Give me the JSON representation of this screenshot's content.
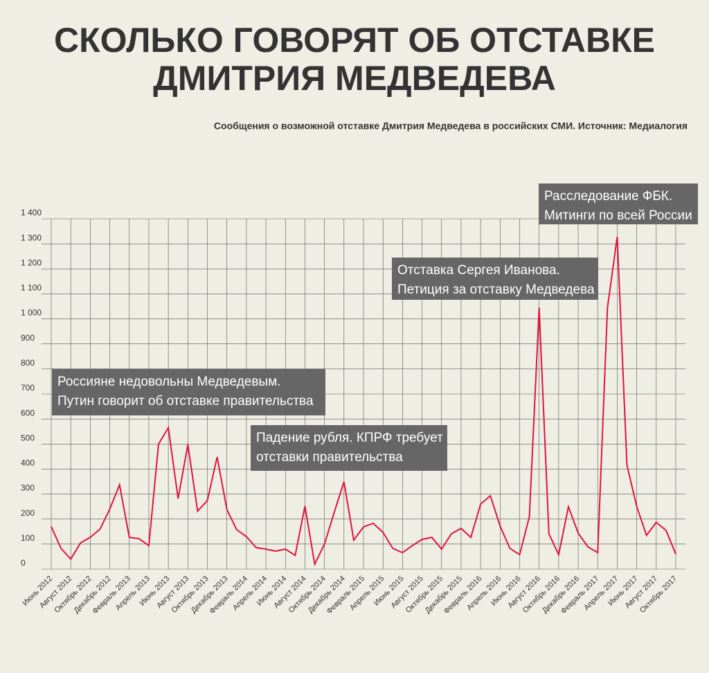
{
  "chart_data": {
    "type": "line",
    "title": [
      "СКОЛЬКО ГОВОРЯТ ОБ ОТСТАВКЕ",
      "ДМИТРИЯ МЕДВЕДЕВА"
    ],
    "subtitle": "Сообщения о возможной отставке Дмитрия Медведева в российских СМИ. Источник: Медиалогия",
    "categories": [
      "Июнь 2012",
      null,
      "Август 2012",
      null,
      "Октябрь 2012",
      null,
      "Декабрь 2012",
      null,
      "Февраль 2013",
      null,
      "Апрель 2013",
      null,
      "Июнь 2013",
      null,
      "Август 2013",
      null,
      "Октябрь 2013",
      null,
      "Декабрь 2013",
      null,
      "Февраль 2014",
      null,
      "Апрель 2014",
      null,
      "Июнь 2014",
      null,
      "Август 2014",
      null,
      "Октябрь 2014",
      null,
      "Декабрь 2014",
      null,
      "Февраль 2015",
      null,
      "Апрель 2015",
      null,
      "Июнь 2015",
      null,
      "Август 2015",
      null,
      "Октябрь 2015",
      null,
      "Декабрь 2015",
      null,
      "Февраль 2016",
      null,
      "Апрель 2016",
      null,
      "Июнь 2016",
      null,
      "Август 2016",
      null,
      "Октябрь 2016",
      null,
      "Декабрь 2016",
      null,
      "Февраль 2017",
      null,
      "Апрель 2017",
      null,
      "Июнь 2017",
      null,
      "Август 2017",
      null,
      "Октябрь 2017"
    ],
    "values": [
      170,
      83,
      40,
      105,
      127,
      160,
      240,
      337,
      127,
      122,
      94,
      500,
      565,
      282,
      498,
      232,
      274,
      448,
      238,
      158,
      130,
      86,
      80,
      72,
      80,
      55,
      252,
      20,
      100,
      227,
      349,
      116,
      169,
      183,
      147,
      83,
      66,
      94,
      119,
      127,
      80,
      141,
      163,
      127,
      260,
      293,
      172,
      83,
      58,
      210,
      1045,
      141,
      58,
      249,
      144,
      89,
      66,
      1045,
      1328,
      415,
      250,
      135,
      187,
      155,
      60
    ],
    "color": "#e0143c",
    "ylim": [
      0,
      1400
    ],
    "yticks": [
      0,
      100,
      200,
      300,
      400,
      500,
      600,
      700,
      800,
      900,
      {
        "value": 1000,
        "label": "1 000"
      },
      {
        "value": 1100,
        "label": "1 100"
      },
      {
        "value": 1200,
        "label": "1 200"
      },
      {
        "value": 1300,
        "label": "1 300"
      },
      {
        "value": 1400,
        "label": "1 400"
      }
    ],
    "grid": true,
    "annotations": [
      {
        "lines": [
          "Россияне недовольны Медведевым.",
          "Путин говорит об отставке правительства"
        ]
      },
      {
        "lines": [
          "Падение рубля. КПРФ требует",
          "отставки правительства"
        ]
      },
      {
        "lines": [
          "Отставка Сергея Иванова.",
          "Петиция за отставку Медведева"
        ]
      },
      {
        "lines": [
          "Расследование ФБК.",
          "Митинги по всей России"
        ]
      }
    ]
  }
}
